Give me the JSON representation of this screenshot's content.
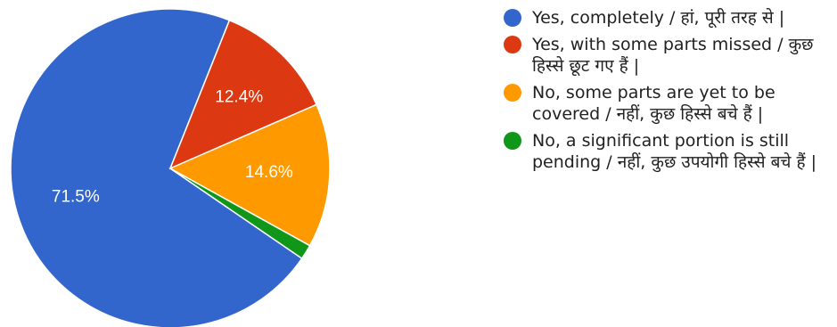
{
  "chart_data": {
    "type": "pie",
    "categories": [
      "Yes, completely / हां, पूरी तरह से |",
      "Yes, with some parts missed / कुछ हिस्से छूट गए हैं |",
      "No, some parts are yet to be covered / नहीं, कुछ हिस्से बचे हैं |",
      "No, a significant portion is still pending / नहीं, कुछ उपयोगी हिस्से बचे हैं |"
    ],
    "values": [
      71.5,
      12.4,
      14.6,
      1.5
    ],
    "data_labels": [
      "71.5%",
      "12.4%",
      "14.6%",
      ""
    ],
    "colors": [
      "#3366cc",
      "#dc3912",
      "#ff9900",
      "#109618"
    ],
    "legend_position": "right",
    "title": ""
  }
}
